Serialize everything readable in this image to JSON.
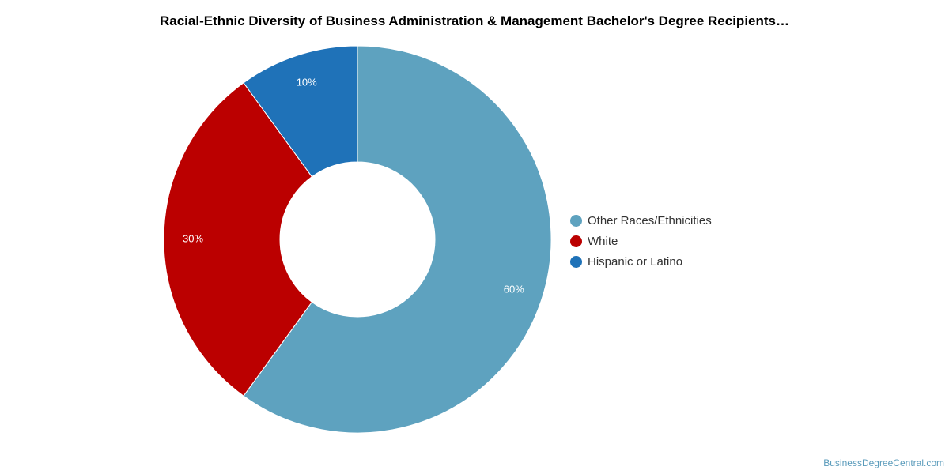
{
  "chart_data": {
    "type": "pie",
    "donut": true,
    "title": "Racial-Ethnic Diversity of Business Administration & Management Bachelor's Degree Recipients…",
    "slices": [
      {
        "label": "Other Races/Ethnicities",
        "value": 60,
        "display": "60%",
        "color": "#5ea2bf"
      },
      {
        "label": "White",
        "value": 30,
        "display": "30%",
        "color": "#bb0000"
      },
      {
        "label": "Hispanic or Latino",
        "value": 10,
        "display": "10%",
        "color": "#1f72b8"
      }
    ],
    "legend_placement": "right",
    "start_angle": "top",
    "direction": "clockwise"
  },
  "watermark": "BusinessDegreeCentral.com"
}
